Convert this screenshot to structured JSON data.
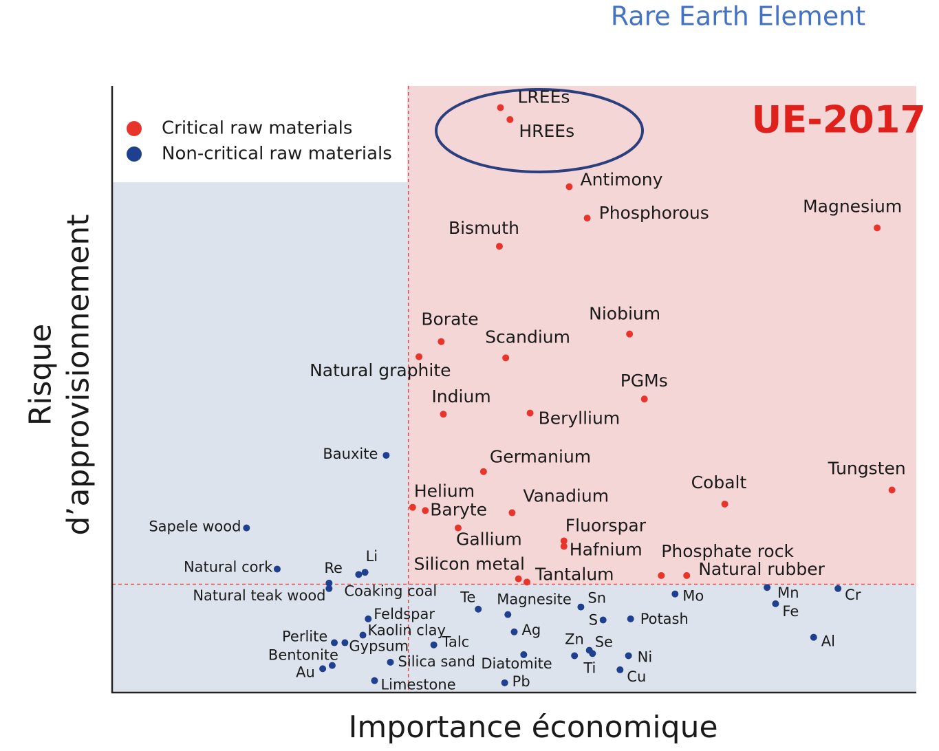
{
  "chart_data": {
    "type": "scatter",
    "title": "UE-2017",
    "annotation": "Rare Earth Element",
    "x_label": "Importance économique",
    "y_label": "Risque d’approvisionnement",
    "xlim": [
      0,
      7.6
    ],
    "ylim": [
      0,
      5.6
    ],
    "x_threshold": 2.8,
    "y_threshold": 1.0,
    "legend": "upper left",
    "series": [
      {
        "name": "Critical raw materials",
        "color": "#e8352b",
        "labels": [
          "LREEs",
          "HREEs",
          "Antimony",
          "Phosphorous",
          "Magnesium",
          "Bismuth",
          "Borate",
          "Natural graphite",
          "Scandium",
          "Niobium",
          "PGMs",
          "Indium",
          "Beryllium",
          "Germanium",
          "Tungsten",
          "Cobalt",
          "Helium",
          "Baryte",
          "Vanadium",
          "Gallium",
          "Fluorspar",
          "Hafnium",
          "Phosphate rock",
          "Natural rubber",
          "Silicon metal",
          "Tantalum"
        ],
        "x": [
          3.67,
          3.76,
          4.32,
          4.49,
          7.23,
          3.66,
          3.11,
          2.9,
          3.72,
          4.89,
          5.03,
          3.13,
          3.95,
          3.51,
          7.37,
          5.79,
          2.84,
          2.96,
          3.78,
          3.27,
          4.27,
          4.27,
          5.19,
          5.43,
          3.84,
          3.92
        ],
        "values": [
          5.4,
          5.29,
          4.67,
          4.38,
          4.29,
          4.12,
          3.24,
          3.1,
          3.09,
          3.31,
          2.71,
          2.57,
          2.58,
          2.04,
          1.87,
          1.74,
          1.71,
          1.68,
          1.66,
          1.52,
          1.4,
          1.35,
          1.08,
          1.08,
          1.05,
          1.02
        ]
      },
      {
        "name": "Non-critical raw materials",
        "color": "#1f3f8f",
        "labels": [
          "Bauxite",
          "Sapele wood",
          "Natural cork",
          "Re",
          "Li",
          "Coaking coal",
          "Natural teak wood",
          "Te",
          "Magnesite",
          "Sn",
          "S",
          "Potash",
          "Mo",
          "Mn",
          "Fe",
          "Cr",
          "Al",
          "Feldspar",
          "Kaolin clay",
          "Perlite",
          "Gypsum",
          "Talc",
          "Ag",
          "Zn",
          "Se",
          "Ti",
          "Ni",
          "Cu",
          "Diatomite",
          "Silica sand",
          "Bentonite",
          "Au",
          "Limestone",
          "Pb"
        ],
        "x": [
          2.59,
          1.27,
          1.56,
          2.05,
          2.39,
          2.33,
          2.05,
          3.46,
          3.74,
          4.43,
          4.64,
          4.9,
          5.32,
          6.19,
          6.27,
          6.86,
          6.63,
          2.42,
          2.37,
          2.1,
          2.2,
          3.04,
          3.8,
          4.37,
          4.51,
          4.54,
          4.88,
          4.8,
          3.89,
          2.63,
          2.08,
          1.99,
          2.48,
          3.71
        ],
        "values": [
          2.19,
          1.52,
          1.14,
          1.01,
          1.11,
          1.09,
          0.96,
          0.77,
          0.72,
          0.79,
          0.67,
          0.68,
          0.91,
          0.97,
          0.82,
          0.96,
          0.51,
          0.68,
          0.53,
          0.46,
          0.46,
          0.44,
          0.56,
          0.34,
          0.39,
          0.36,
          0.34,
          0.21,
          0.35,
          0.28,
          0.25,
          0.22,
          0.11,
          0.09
        ]
      }
    ]
  }
}
